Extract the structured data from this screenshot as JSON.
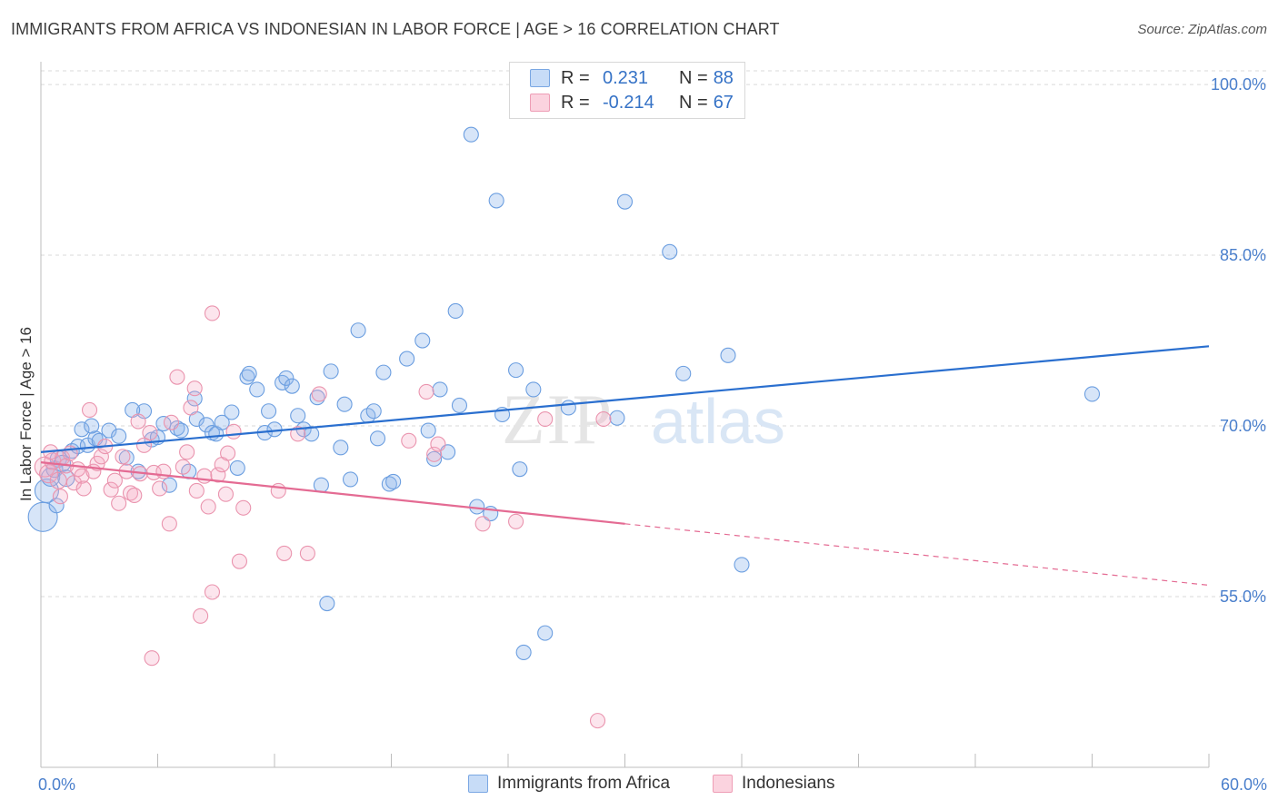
{
  "title": "IMMIGRANTS FROM AFRICA VS INDONESIAN IN LABOR FORCE | AGE > 16 CORRELATION CHART",
  "source": "Source: ZipAtlas.com",
  "watermark": {
    "zip": "ZIP",
    "atlas": "atlas"
  },
  "legend": {
    "rows": [
      {
        "r_label": "R =",
        "r_value": "0.231",
        "n_label": "N =",
        "n_value": "88",
        "color": "#aecbf3"
      },
      {
        "r_label": "R =",
        "r_value": "-0.214",
        "n_label": "N =",
        "n_value": "67",
        "color": "#f9c1d1"
      }
    ]
  },
  "bottom_legend": {
    "items": [
      {
        "label": "Immigrants from Africa",
        "color": "#aecbf3"
      },
      {
        "label": "Indonesians",
        "color": "#f9c1d1"
      }
    ]
  },
  "chart_data": {
    "type": "scatter",
    "title": "IMMIGRANTS FROM AFRICA VS INDONESIAN IN LABOR FORCE | AGE > 16 CORRELATION CHART",
    "xlabel": "",
    "ylabel": "In Labor Force | Age > 16",
    "xlim": [
      0,
      60
    ],
    "ylim": [
      40,
      102
    ],
    "x_tick_labels": [
      "0.0%",
      "60.0%"
    ],
    "y_ticks": [
      55,
      70,
      85,
      100
    ],
    "y_tick_labels": [
      "55.0%",
      "70.0%",
      "85.0%",
      "100.0%"
    ],
    "grid": true,
    "legend_position": "top-center",
    "series": [
      {
        "name": "Immigrants from Africa",
        "color": "#6b9ee0",
        "fill": "rgba(140,180,235,0.35)",
        "trend": {
          "x0": 0,
          "y0": 67.7,
          "x1": 60,
          "y1": 77.0,
          "dashed_from": null
        },
        "points": [
          [
            0.1,
            62.0,
            16
          ],
          [
            0.3,
            64.3,
            13
          ],
          [
            0.5,
            65.5,
            10
          ],
          [
            0.7,
            66.2,
            9
          ],
          [
            0.9,
            67.1,
            9
          ],
          [
            1.1,
            66.7,
            9
          ],
          [
            1.3,
            65.4,
            9
          ],
          [
            1.6,
            67.8,
            8
          ],
          [
            1.9,
            68.2,
            8
          ],
          [
            2.1,
            69.7,
            8
          ],
          [
            2.4,
            68.3,
            8
          ],
          [
            2.8,
            68.9,
            8
          ],
          [
            3.0,
            68.7,
            8
          ],
          [
            3.5,
            69.6,
            8
          ],
          [
            4.0,
            69.1,
            8
          ],
          [
            4.4,
            67.2,
            8
          ],
          [
            5.0,
            66.0,
            8
          ],
          [
            5.3,
            71.3,
            8
          ],
          [
            5.7,
            68.8,
            8
          ],
          [
            6.0,
            69.0,
            8
          ],
          [
            6.6,
            64.8,
            8
          ],
          [
            7.0,
            69.8,
            8
          ],
          [
            7.2,
            69.6,
            8
          ],
          [
            7.6,
            66.0,
            8
          ],
          [
            7.9,
            72.4,
            8
          ],
          [
            8.0,
            70.6,
            8
          ],
          [
            8.5,
            70.1,
            8
          ],
          [
            8.8,
            69.4,
            8
          ],
          [
            9.0,
            69.3,
            8
          ],
          [
            9.3,
            70.3,
            8
          ],
          [
            9.8,
            71.2,
            8
          ],
          [
            10.1,
            66.3,
            8
          ],
          [
            10.6,
            74.3,
            8
          ],
          [
            10.7,
            74.6,
            8
          ],
          [
            11.1,
            73.2,
            8
          ],
          [
            11.5,
            69.4,
            8
          ],
          [
            11.7,
            71.3,
            8
          ],
          [
            12.0,
            69.7,
            8
          ],
          [
            12.4,
            73.8,
            8
          ],
          [
            12.6,
            74.2,
            8
          ],
          [
            12.9,
            73.5,
            8
          ],
          [
            13.2,
            70.9,
            8
          ],
          [
            13.5,
            69.7,
            8
          ],
          [
            13.9,
            69.3,
            8
          ],
          [
            14.2,
            72.5,
            8
          ],
          [
            14.4,
            64.8,
            8
          ],
          [
            14.7,
            54.4,
            8
          ],
          [
            14.9,
            74.8,
            8
          ],
          [
            15.4,
            68.1,
            8
          ],
          [
            15.6,
            71.9,
            8
          ],
          [
            15.9,
            65.3,
            8
          ],
          [
            16.3,
            78.4,
            8
          ],
          [
            16.8,
            70.9,
            8
          ],
          [
            17.1,
            71.3,
            8
          ],
          [
            17.3,
            68.9,
            8
          ],
          [
            17.6,
            74.7,
            8
          ],
          [
            17.9,
            64.9,
            8
          ],
          [
            18.1,
            65.1,
            8
          ],
          [
            18.8,
            75.9,
            8
          ],
          [
            19.6,
            77.5,
            8
          ],
          [
            19.9,
            69.6,
            8
          ],
          [
            20.2,
            67.1,
            8
          ],
          [
            20.5,
            73.2,
            8
          ],
          [
            20.9,
            67.7,
            8
          ],
          [
            21.3,
            80.1,
            8
          ],
          [
            21.5,
            71.8,
            8
          ],
          [
            22.4,
            62.9,
            8
          ],
          [
            22.1,
            95.6,
            8
          ],
          [
            23.1,
            62.3,
            8
          ],
          [
            23.7,
            71.0,
            8
          ],
          [
            23.4,
            89.8,
            8
          ],
          [
            24.4,
            74.9,
            8
          ],
          [
            24.6,
            66.2,
            8
          ],
          [
            24.8,
            50.1,
            8
          ],
          [
            25.3,
            73.2,
            8
          ],
          [
            25.9,
            51.8,
            8
          ],
          [
            27.1,
            71.6,
            8
          ],
          [
            29.6,
            70.7,
            8
          ],
          [
            30.0,
            89.7,
            8
          ],
          [
            32.3,
            85.3,
            8
          ],
          [
            33.0,
            74.6,
            8
          ],
          [
            35.3,
            76.2,
            8
          ],
          [
            36.0,
            57.8,
            8
          ],
          [
            54.0,
            72.8,
            8
          ],
          [
            0.8,
            63.0,
            8
          ],
          [
            2.6,
            70.0,
            8
          ],
          [
            4.7,
            71.4,
            8
          ],
          [
            6.3,
            70.2,
            8
          ]
        ]
      },
      {
        "name": "Indonesians",
        "color": "#ea94ae",
        "fill": "rgba(245,170,195,0.30)",
        "trend": {
          "x0": 0,
          "y0": 66.8,
          "x1": 60,
          "y1": 56.0,
          "dashed_from": 30
        },
        "points": [
          [
            0.2,
            66.4,
            11
          ],
          [
            0.4,
            65.8,
            10
          ],
          [
            0.6,
            66.9,
            9
          ],
          [
            0.9,
            65.2,
            9
          ],
          [
            1.1,
            67.2,
            8
          ],
          [
            1.3,
            66.5,
            8
          ],
          [
            1.5,
            67.6,
            8
          ],
          [
            1.7,
            65.0,
            8
          ],
          [
            1.9,
            66.2,
            8
          ],
          [
            2.1,
            65.6,
            8
          ],
          [
            2.2,
            64.5,
            8
          ],
          [
            2.5,
            71.4,
            8
          ],
          [
            2.7,
            66.0,
            8
          ],
          [
            2.9,
            66.7,
            8
          ],
          [
            3.1,
            67.3,
            8
          ],
          [
            3.3,
            68.2,
            8
          ],
          [
            3.6,
            64.4,
            8
          ],
          [
            3.8,
            65.2,
            8
          ],
          [
            4.0,
            63.2,
            8
          ],
          [
            4.2,
            67.3,
            8
          ],
          [
            4.4,
            66.0,
            8
          ],
          [
            4.6,
            64.1,
            8
          ],
          [
            4.8,
            63.9,
            8
          ],
          [
            5.0,
            70.4,
            8
          ],
          [
            5.1,
            65.8,
            8
          ],
          [
            5.3,
            68.3,
            8
          ],
          [
            5.6,
            69.4,
            8
          ],
          [
            5.8,
            65.9,
            8
          ],
          [
            6.1,
            64.5,
            8
          ],
          [
            6.3,
            66.0,
            8
          ],
          [
            6.7,
            70.3,
            8
          ],
          [
            5.7,
            49.6,
            8
          ],
          [
            6.6,
            61.4,
            8
          ],
          [
            7.0,
            74.3,
            8
          ],
          [
            7.3,
            66.4,
            8
          ],
          [
            7.5,
            67.7,
            8
          ],
          [
            7.7,
            71.6,
            8
          ],
          [
            7.9,
            73.3,
            8
          ],
          [
            8.0,
            64.3,
            8
          ],
          [
            8.2,
            53.3,
            8
          ],
          [
            8.4,
            65.6,
            8
          ],
          [
            8.6,
            62.9,
            8
          ],
          [
            8.8,
            55.4,
            8
          ],
          [
            8.8,
            79.9,
            8
          ],
          [
            9.1,
            65.7,
            8
          ],
          [
            9.3,
            66.6,
            8
          ],
          [
            9.5,
            64.0,
            8
          ],
          [
            9.6,
            67.6,
            8
          ],
          [
            9.9,
            69.5,
            8
          ],
          [
            10.2,
            58.1,
            8
          ],
          [
            10.4,
            62.8,
            8
          ],
          [
            12.2,
            64.3,
            8
          ],
          [
            12.5,
            58.8,
            8
          ],
          [
            13.2,
            69.3,
            8
          ],
          [
            13.7,
            58.8,
            8
          ],
          [
            14.3,
            72.8,
            8
          ],
          [
            18.9,
            68.7,
            8
          ],
          [
            19.8,
            73.0,
            8
          ],
          [
            20.2,
            67.5,
            8
          ],
          [
            20.4,
            68.4,
            8
          ],
          [
            22.7,
            61.4,
            8
          ],
          [
            24.4,
            61.6,
            8
          ],
          [
            25.9,
            70.6,
            8
          ],
          [
            28.9,
            70.6,
            8
          ],
          [
            28.6,
            44.1,
            8
          ],
          [
            0.5,
            67.7,
            8
          ],
          [
            1.0,
            63.8,
            8
          ]
        ]
      }
    ]
  }
}
